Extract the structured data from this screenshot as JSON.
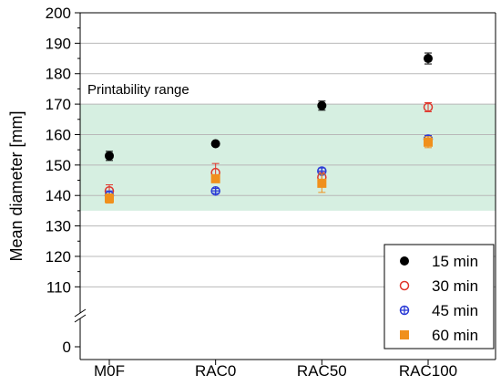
{
  "chart_data": {
    "type": "scatter",
    "title": "",
    "xlabel": "",
    "ylabel": "Mean diameter [mm]",
    "categories": [
      "M0F",
      "RAC0",
      "RAC50",
      "RAC100"
    ],
    "ylim_upper": [
      105,
      200
    ],
    "axis_break": true,
    "yticks": [
      0,
      110,
      120,
      130,
      140,
      150,
      160,
      170,
      180,
      190,
      200
    ],
    "grid": "horizontal",
    "band": {
      "label": "Printability range",
      "from": 135,
      "to": 170,
      "color": "#d6efe1"
    },
    "legend_position": "bottom-right",
    "series": [
      {
        "name": "15 min",
        "marker": "filled-circle",
        "color": "#000000",
        "values": [
          153,
          157,
          169.5,
          185
        ],
        "errors": [
          1.5,
          0.5,
          1.5,
          1.8
        ]
      },
      {
        "name": "30 min",
        "marker": "open-circle",
        "color": "#e0352b",
        "values": [
          141.5,
          147.5,
          146,
          169
        ],
        "errors": [
          2,
          3,
          1.5,
          1.5
        ]
      },
      {
        "name": "45 min",
        "marker": "crossed-circle",
        "color": "#2b3bd6",
        "values": [
          140,
          141.5,
          148,
          158.5
        ],
        "errors": [
          1.5,
          0.8,
          1,
          1.2
        ]
      },
      {
        "name": "60 min",
        "marker": "square",
        "color": "#f0901c",
        "values": [
          139,
          145.5,
          144,
          157.5
        ],
        "errors": [
          1.5,
          1,
          3,
          1.8
        ]
      }
    ]
  }
}
